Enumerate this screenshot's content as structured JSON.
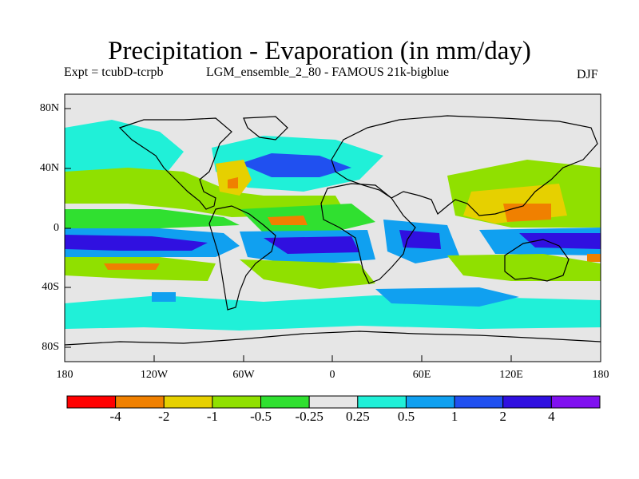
{
  "title": "Precipitation - Evaporation (in mm/day)",
  "experiment": "Expt = tcubD-tcrpb",
  "run": "LGM_ensemble_2_80 - FAMOUS 21k-bigblue",
  "season": "DJF",
  "lat_ticks": [
    "80N",
    "40N",
    "0",
    "40S",
    "80S"
  ],
  "lon_ticks": [
    "180",
    "120W",
    "60W",
    "0",
    "60E",
    "120E",
    "180"
  ],
  "colorbar": {
    "colors": [
      "#ff0000",
      "#f08000",
      "#e6d000",
      "#90e000",
      "#30e030",
      "#e6e6e6",
      "#20f0d8",
      "#10a0f0",
      "#2050f0",
      "#3010e0",
      "#8010f0"
    ],
    "labels": [
      "-4",
      "-2",
      "-1",
      "-0.5",
      "-0.25",
      "0.25",
      "0.5",
      "1",
      "2",
      "4"
    ]
  },
  "map_colors": {
    "background": "#e6e6e6",
    "coast": "#000000"
  }
}
